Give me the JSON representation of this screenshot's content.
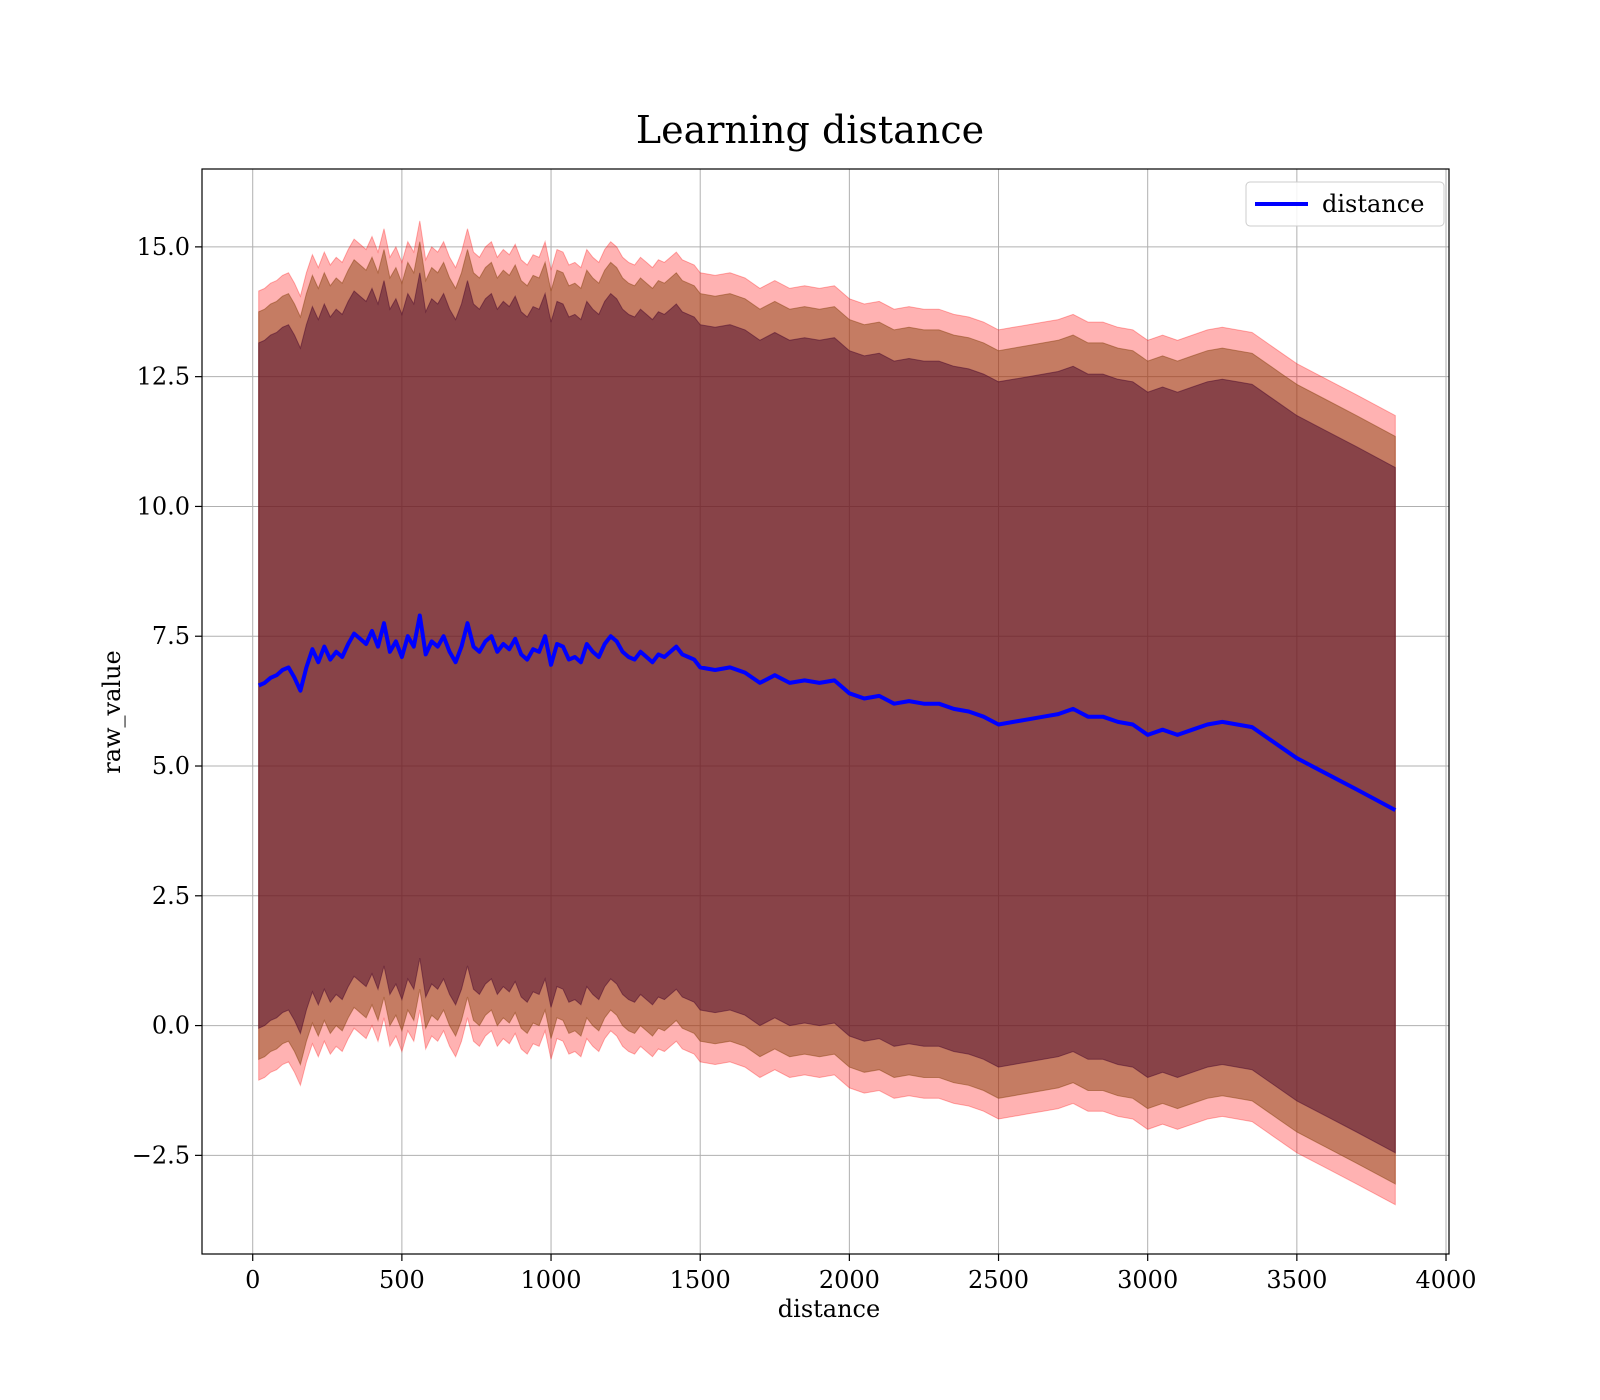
{
  "chart_data": {
    "type": "line",
    "title": "Learning distance",
    "xlabel": "distance",
    "ylabel": "raw_value",
    "xlim": [
      -170,
      4010
    ],
    "ylim": [
      -4.4,
      16.5
    ],
    "xticks": [
      0,
      500,
      1000,
      1500,
      2000,
      2500,
      3000,
      3500,
      4000
    ],
    "xtick_labels": [
      "0",
      "500",
      "1000",
      "1500",
      "2000",
      "2500",
      "3000",
      "3500",
      "4000"
    ],
    "yticks": [
      -2.5,
      0.0,
      2.5,
      5.0,
      7.5,
      10.0,
      12.5,
      15.0
    ],
    "ytick_labels": [
      "−2.5",
      "0.0",
      "2.5",
      "5.0",
      "7.5",
      "10.0",
      "12.5",
      "15.0"
    ],
    "grid": true,
    "legend": {
      "position": "upper-right",
      "entries": [
        "distance"
      ]
    },
    "colors": {
      "line": "#0000ff",
      "band_outer": "#ff0000",
      "band_middle": "#8b4513",
      "band_inner": "#4b0a2e",
      "grid": "#b0b0b0"
    },
    "band_offsets": {
      "inner": 6.6,
      "middle": 7.2,
      "outer": 7.6
    },
    "series": [
      {
        "name": "distance",
        "x": [
          20,
          40,
          60,
          80,
          100,
          120,
          140,
          160,
          180,
          200,
          220,
          240,
          260,
          280,
          300,
          320,
          340,
          360,
          380,
          400,
          420,
          440,
          460,
          480,
          500,
          520,
          540,
          560,
          580,
          600,
          620,
          640,
          660,
          680,
          700,
          720,
          740,
          760,
          780,
          800,
          820,
          840,
          860,
          880,
          900,
          920,
          940,
          960,
          980,
          1000,
          1020,
          1040,
          1060,
          1080,
          1100,
          1120,
          1140,
          1160,
          1180,
          1200,
          1220,
          1240,
          1260,
          1280,
          1300,
          1320,
          1340,
          1360,
          1380,
          1400,
          1420,
          1440,
          1460,
          1480,
          1500,
          1550,
          1600,
          1650,
          1700,
          1750,
          1800,
          1850,
          1900,
          1950,
          2000,
          2050,
          2100,
          2150,
          2200,
          2250,
          2300,
          2350,
          2400,
          2450,
          2500,
          2550,
          2600,
          2650,
          2700,
          2750,
          2800,
          2850,
          2900,
          2950,
          3000,
          3050,
          3100,
          3150,
          3200,
          3250,
          3300,
          3350,
          3400,
          3450,
          3500,
          3600,
          3700,
          3830
        ],
        "y": [
          6.55,
          6.6,
          6.7,
          6.75,
          6.85,
          6.9,
          6.7,
          6.45,
          6.9,
          7.25,
          7.0,
          7.3,
          7.05,
          7.2,
          7.1,
          7.35,
          7.55,
          7.45,
          7.35,
          7.6,
          7.3,
          7.75,
          7.2,
          7.4,
          7.1,
          7.5,
          7.3,
          7.9,
          7.15,
          7.4,
          7.3,
          7.5,
          7.2,
          7.0,
          7.3,
          7.75,
          7.3,
          7.2,
          7.4,
          7.5,
          7.2,
          7.35,
          7.25,
          7.45,
          7.15,
          7.05,
          7.25,
          7.2,
          7.5,
          6.95,
          7.35,
          7.3,
          7.05,
          7.1,
          7.0,
          7.35,
          7.2,
          7.1,
          7.35,
          7.5,
          7.4,
          7.2,
          7.1,
          7.05,
          7.2,
          7.1,
          7.0,
          7.15,
          7.1,
          7.2,
          7.3,
          7.15,
          7.1,
          7.05,
          6.9,
          6.85,
          6.9,
          6.8,
          6.6,
          6.75,
          6.6,
          6.65,
          6.6,
          6.65,
          6.4,
          6.3,
          6.35,
          6.2,
          6.25,
          6.2,
          6.2,
          6.1,
          6.05,
          5.95,
          5.8,
          5.85,
          5.9,
          5.95,
          6.0,
          6.1,
          5.95,
          5.95,
          5.85,
          5.8,
          5.6,
          5.7,
          5.6,
          5.7,
          5.8,
          5.85,
          5.8,
          5.75,
          5.55,
          5.35,
          5.15,
          4.85,
          4.55,
          4.15
        ]
      }
    ]
  }
}
